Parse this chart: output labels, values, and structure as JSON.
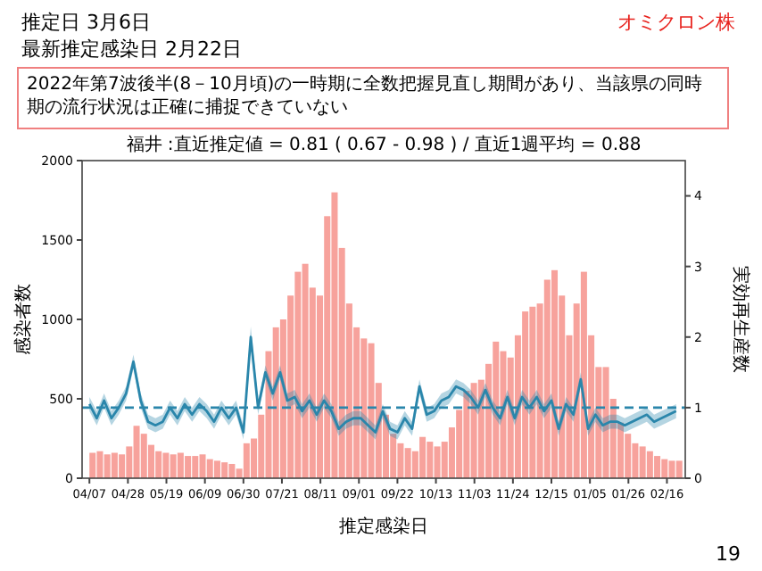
{
  "chart_data": {
    "type": "bar",
    "title": "福井 :直近推定値 = 0.81 ( 0.67 - 0.98 ) / 直近1週平均 = 0.88",
    "xlabel": "推定感染日",
    "ylabel": "感染者数",
    "y2label": "実効再生産数",
    "annotations": [
      "推定日  3月6日",
      "最新推定感染日  2月22日",
      "オミクロン株",
      "2022年第7波後半(8－10月頃)の一時期に全数把握見直し期間があり、当該県の同時期の流行状況は正確に捕捉できていない",
      "19"
    ],
    "x": [
      "2022-04-07",
      "2022-04-11",
      "2022-04-15",
      "2022-04-19",
      "2022-04-23",
      "2022-04-27",
      "2022-05-01",
      "2022-05-05",
      "2022-05-09",
      "2022-05-13",
      "2022-05-17",
      "2022-05-21",
      "2022-05-25",
      "2022-05-29",
      "2022-06-02",
      "2022-06-06",
      "2022-06-10",
      "2022-06-14",
      "2022-06-18",
      "2022-06-22",
      "2022-06-26",
      "2022-06-30",
      "2022-07-04",
      "2022-07-08",
      "2022-07-12",
      "2022-07-16",
      "2022-07-20",
      "2022-07-24",
      "2022-07-28",
      "2022-08-01",
      "2022-08-05",
      "2022-08-09",
      "2022-08-13",
      "2022-08-17",
      "2022-08-21",
      "2022-08-25",
      "2022-08-29",
      "2022-09-02",
      "2022-09-06",
      "2022-09-10",
      "2022-09-14",
      "2022-09-18",
      "2022-09-22",
      "2022-09-26",
      "2022-09-30",
      "2022-10-04",
      "2022-10-08",
      "2022-10-12",
      "2022-10-16",
      "2022-10-20",
      "2022-10-24",
      "2022-10-28",
      "2022-11-01",
      "2022-11-05",
      "2022-11-09",
      "2022-11-13",
      "2022-11-17",
      "2022-11-21",
      "2022-11-25",
      "2022-11-29",
      "2022-12-03",
      "2022-12-07",
      "2022-12-11",
      "2022-12-15",
      "2022-12-19",
      "2022-12-23",
      "2022-12-27",
      "2022-12-31",
      "2023-01-04",
      "2023-01-08",
      "2023-01-12",
      "2023-01-16",
      "2023-01-20",
      "2023-01-24",
      "2023-01-28",
      "2023-02-01",
      "2023-02-05",
      "2023-02-09",
      "2023-02-13",
      "2023-02-17",
      "2023-02-21"
    ],
    "series": [
      {
        "color": "#f7a29c",
        "values": [
          160,
          170,
          150,
          160,
          150,
          200,
          330,
          280,
          210,
          170,
          160,
          150,
          160,
          140,
          140,
          150,
          120,
          110,
          100,
          90,
          60,
          220,
          250,
          400,
          800,
          950,
          1000,
          1150,
          1300,
          1350,
          1200,
          1150,
          1650,
          1800,
          1450,
          1100,
          950,
          880,
          850,
          600,
          400,
          280,
          220,
          190,
          170,
          260,
          230,
          200,
          230,
          320,
          430,
          550,
          600,
          620,
          720,
          860,
          800,
          760,
          900,
          1050,
          1080,
          1100,
          1250,
          1310,
          1150,
          900,
          1100,
          1300,
          900,
          700,
          700,
          500,
          350,
          280,
          220,
          200,
          170,
          140,
          120,
          110,
          110
        ]
      },
      {
        "type": "line",
        "axis": "y2",
        "color": "#2a86ab",
        "values": [
          1.05,
          0.85,
          1.1,
          0.85,
          1.0,
          1.2,
          1.65,
          1.1,
          0.8,
          0.75,
          0.8,
          1.0,
          0.85,
          1.05,
          0.9,
          1.05,
          0.95,
          0.8,
          1.0,
          0.85,
          1.0,
          0.65,
          2.0,
          1.0,
          1.5,
          1.2,
          1.5,
          1.1,
          1.15,
          0.95,
          1.1,
          0.9,
          1.1,
          0.95,
          0.7,
          0.8,
          0.85,
          0.85,
          0.75,
          0.65,
          0.95,
          0.7,
          0.65,
          0.85,
          0.7,
          1.3,
          0.9,
          0.95,
          1.1,
          1.15,
          1.3,
          1.25,
          1.15,
          1.0,
          1.25,
          1.0,
          0.85,
          1.15,
          0.85,
          1.15,
          1.0,
          1.15,
          0.95,
          1.1,
          0.7,
          1.05,
          0.9,
          1.4,
          0.7,
          0.9,
          0.75,
          0.8,
          0.8,
          0.75,
          0.8,
          0.85,
          0.9,
          0.8,
          0.85,
          0.9,
          0.95
        ],
        "lower": [
          0.95,
          0.75,
          1.0,
          0.75,
          0.9,
          1.1,
          1.55,
          1.0,
          0.7,
          0.65,
          0.7,
          0.9,
          0.75,
          0.95,
          0.8,
          0.95,
          0.85,
          0.7,
          0.9,
          0.75,
          0.9,
          0.55,
          1.85,
          0.9,
          1.4,
          1.1,
          1.4,
          1.0,
          1.05,
          0.85,
          1.0,
          0.8,
          1.0,
          0.85,
          0.6,
          0.7,
          0.75,
          0.75,
          0.65,
          0.55,
          0.85,
          0.6,
          0.55,
          0.75,
          0.6,
          1.2,
          0.8,
          0.85,
          1.0,
          1.05,
          1.2,
          1.15,
          1.05,
          0.9,
          1.15,
          0.9,
          0.75,
          1.05,
          0.75,
          1.05,
          0.9,
          1.05,
          0.85,
          1.0,
          0.6,
          0.95,
          0.8,
          1.3,
          0.6,
          0.8,
          0.65,
          0.7,
          0.7,
          0.65,
          0.7,
          0.75,
          0.8,
          0.7,
          0.75,
          0.8,
          0.85
        ],
        "upper": [
          1.15,
          0.95,
          1.2,
          0.95,
          1.1,
          1.3,
          1.75,
          1.2,
          0.9,
          0.85,
          0.9,
          1.1,
          0.95,
          1.15,
          1.0,
          1.15,
          1.05,
          0.9,
          1.1,
          0.95,
          1.1,
          0.75,
          2.15,
          1.1,
          1.6,
          1.3,
          1.6,
          1.2,
          1.25,
          1.05,
          1.2,
          1.0,
          1.2,
          1.05,
          0.8,
          0.9,
          0.95,
          0.95,
          0.85,
          0.75,
          1.05,
          0.8,
          0.75,
          0.95,
          0.8,
          1.4,
          1.0,
          1.05,
          1.2,
          1.25,
          1.4,
          1.35,
          1.25,
          1.1,
          1.35,
          1.1,
          0.95,
          1.25,
          0.95,
          1.25,
          1.1,
          1.25,
          1.05,
          1.2,
          0.8,
          1.15,
          1.0,
          1.5,
          0.8,
          1.0,
          0.85,
          0.9,
          0.9,
          0.85,
          0.9,
          0.95,
          1.0,
          0.9,
          0.95,
          1.0,
          1.05
        ]
      }
    ],
    "xlim": [
      "2022-04-03",
      "2023-02-26"
    ],
    "xticks": [
      {
        "value": "2022-04-07",
        "label": "04/07"
      },
      {
        "value": "2022-04-28",
        "label": "04/28"
      },
      {
        "value": "2022-05-19",
        "label": "05/19"
      },
      {
        "value": "2022-06-09",
        "label": "06/09"
      },
      {
        "value": "2022-06-30",
        "label": "06/30"
      },
      {
        "value": "2022-07-21",
        "label": "07/21"
      },
      {
        "value": "2022-08-11",
        "label": "08/11"
      },
      {
        "value": "2022-09-01",
        "label": "09/01"
      },
      {
        "value": "2022-09-22",
        "label": "09/22"
      },
      {
        "value": "2022-10-13",
        "label": "10/13"
      },
      {
        "value": "2022-11-03",
        "label": "11/03"
      },
      {
        "value": "2022-11-24",
        "label": "11/24"
      },
      {
        "value": "2022-12-15",
        "label": "12/15"
      },
      {
        "value": "2023-01-05",
        "label": "01/05"
      },
      {
        "value": "2023-01-26",
        "label": "01/26"
      },
      {
        "value": "2023-02-16",
        "label": "02/16"
      }
    ],
    "ylim": [
      0,
      2000
    ],
    "yticks": [
      0,
      500,
      1000,
      1500,
      2000
    ],
    "y2lim": [
      0,
      4.5
    ],
    "y2ticks": [
      0,
      1,
      2,
      3,
      4
    ],
    "ref_lines": [
      {
        "axis": "y2",
        "value": 1,
        "color": "#2a86ab",
        "line_style": "dashed"
      }
    ]
  }
}
